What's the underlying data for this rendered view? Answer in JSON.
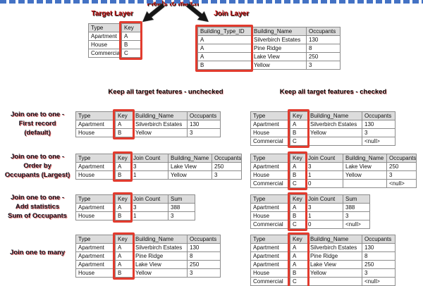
{
  "top": {
    "fields_to_match_label": "Fields to match",
    "target_layer_label": "Target Layer",
    "join_layer_label": "Join Layer",
    "target_table": {
      "headers": [
        "Type",
        "Key"
      ],
      "key_col": 1,
      "rows": [
        [
          "Apartment",
          "A"
        ],
        [
          "House",
          "B"
        ],
        [
          "Commercial",
          "C"
        ]
      ]
    },
    "join_table": {
      "headers": [
        "Building_Type_ID",
        "Building_Name",
        "Occupants"
      ],
      "key_col": 0,
      "rows": [
        [
          "A",
          "Silverbirch Estates",
          "130"
        ],
        [
          "A",
          "Pine Ridge",
          "8"
        ],
        [
          "A",
          "Lake View",
          "250"
        ],
        [
          "B",
          "Yellow",
          "3"
        ]
      ]
    }
  },
  "section_headers": {
    "unchecked": "Keep all target features - unchecked",
    "checked": "Keep all target features - checked"
  },
  "join_rows": [
    {
      "label_lines": [
        "Join one to one -",
        "First record",
        "(default)"
      ],
      "unchecked": {
        "headers": [
          "Type",
          "Key",
          "Building_Name",
          "Occupants"
        ],
        "key_col": 1,
        "rows": [
          [
            "Apartment",
            "A",
            "Silverbirch Estates",
            "130"
          ],
          [
            "House",
            "B",
            "Yellow",
            "3"
          ]
        ]
      },
      "checked": {
        "headers": [
          "Type",
          "Key",
          "Building_Name",
          "Occupants"
        ],
        "key_col": 1,
        "rows": [
          [
            "Apartment",
            "A",
            "Silverbirch Estates",
            "130"
          ],
          [
            "House",
            "B",
            "Yellow",
            "3"
          ],
          [
            "Commercial",
            "C",
            "",
            "<null>"
          ]
        ]
      }
    },
    {
      "label_lines": [
        "Join one to one -",
        "Order by",
        "Occupants (Largest)"
      ],
      "unchecked": {
        "headers": [
          "Type",
          "Key",
          "Join Count",
          "Building_Name",
          "Occupants"
        ],
        "key_col": 1,
        "rows": [
          [
            "Apartment",
            "A",
            "3",
            "Lake View",
            "250"
          ],
          [
            "House",
            "B",
            "1",
            "Yellow",
            "3"
          ]
        ]
      },
      "checked": {
        "headers": [
          "Type",
          "Key",
          "Join Count",
          "Building_Name",
          "Occupants"
        ],
        "key_col": 1,
        "rows": [
          [
            "Apartment",
            "A",
            "3",
            "Lake View",
            "250"
          ],
          [
            "House",
            "B",
            "1",
            "Yellow",
            "3"
          ],
          [
            "Commercial",
            "C",
            "0",
            "",
            "<null>"
          ]
        ]
      }
    },
    {
      "label_lines": [
        "Join one to one -",
        "Add statistics",
        "Sum of Occupants"
      ],
      "unchecked": {
        "headers": [
          "Type",
          "Key",
          "Join Count",
          "Sum"
        ],
        "key_col": 1,
        "rows": [
          [
            "Apartment",
            "A",
            "3",
            "388"
          ],
          [
            "House",
            "B",
            "1",
            "3"
          ]
        ]
      },
      "checked": {
        "headers": [
          "Type",
          "Key",
          "Join Count",
          "Sum"
        ],
        "key_col": 1,
        "rows": [
          [
            "Apartment",
            "A",
            "3",
            "388"
          ],
          [
            "House",
            "B",
            "1",
            "3"
          ],
          [
            "Commercial",
            "C",
            "0",
            "<null>"
          ]
        ]
      }
    },
    {
      "label_lines": [
        "Join one to many"
      ],
      "unchecked": {
        "headers": [
          "Type",
          "Key",
          "Building_Name",
          "Occupants"
        ],
        "key_col": 1,
        "rows": [
          [
            "Apartment",
            "A",
            "Silverbirch Estates",
            "130"
          ],
          [
            "Apartment",
            "A",
            "Pine Ridge",
            "8"
          ],
          [
            "Apartment",
            "A",
            "Lake View",
            "250"
          ],
          [
            "House",
            "B",
            "Yellow",
            "3"
          ]
        ]
      },
      "checked": {
        "headers": [
          "Type",
          "Key",
          "Building_Name",
          "Occupants"
        ],
        "key_col": 1,
        "rows": [
          [
            "Apartment",
            "A",
            "Silverbirch Estates",
            "130"
          ],
          [
            "Apartment",
            "A",
            "Pine Ridge",
            "8"
          ],
          [
            "Apartment",
            "A",
            "Lake View",
            "250"
          ],
          [
            "House",
            "B",
            "Yellow",
            "3"
          ],
          [
            "Commercial",
            "C",
            "",
            "<null>"
          ]
        ]
      }
    }
  ],
  "colors": {
    "highlight_red": "#e23b2e",
    "title_red": "#c11212",
    "divider_blue": "#4472c4",
    "header_gray": "#dcdcdc"
  }
}
